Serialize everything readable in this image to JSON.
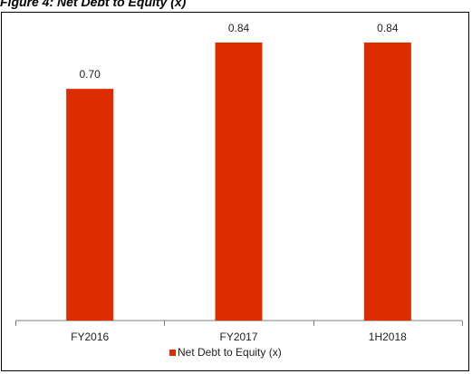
{
  "chart_data": {
    "type": "bar",
    "title": "Figure 4: Net Debt to Equity (x)",
    "categories": [
      "FY2016",
      "FY2017",
      "1H2018"
    ],
    "series": [
      {
        "name": "Net Debt to Equity (x)",
        "values": [
          0.7,
          0.84,
          0.84
        ],
        "labels": [
          "0.70",
          "0.84",
          "0.84"
        ],
        "color": "#dd2c00"
      }
    ],
    "ylim": [
      0,
      0.9
    ],
    "grid": false,
    "legend": "bottom-center"
  }
}
